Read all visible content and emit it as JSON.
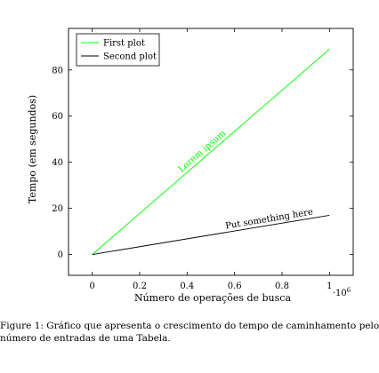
{
  "chart_data": {
    "type": "line",
    "xlabel": "Número de operações de busca",
    "ylabel": "Tempo (em segundos)",
    "x_multiplier_label": "·10",
    "x_multiplier_exponent": "6",
    "xlim": [
      -0.1,
      1.1
    ],
    "ylim": [
      -9,
      98
    ],
    "x_ticks": [
      0,
      0.2,
      0.4,
      0.6,
      0.8,
      1
    ],
    "x_tick_labels": [
      "0",
      "0.2",
      "0.4",
      "0.6",
      "0.8",
      "1"
    ],
    "y_ticks": [
      0,
      20,
      40,
      60,
      80
    ],
    "y_tick_labels": [
      "0",
      "20",
      "40",
      "60",
      "80"
    ],
    "grid": false,
    "legend_position": "top-left",
    "series": [
      {
        "name": "First plot",
        "color": "#00ff00",
        "x": [
          0,
          1
        ],
        "y": [
          0,
          89
        ]
      },
      {
        "name": "Second plot",
        "color": "#000000",
        "x": [
          0,
          1
        ],
        "y": [
          0,
          17
        ]
      }
    ],
    "annotations": [
      {
        "text": "Lorem ipsum",
        "series": 0,
        "at_x": 0.48,
        "color": "#00ff00"
      },
      {
        "text": "Put something here",
        "series": 1,
        "at_x": 0.75,
        "color": "#000000"
      }
    ]
  },
  "caption": {
    "line1": "Figure 1: Gráfico que apresenta o crescimento do tempo de caminhamento pelo",
    "line2": "número de entradas de uma Tabela."
  }
}
